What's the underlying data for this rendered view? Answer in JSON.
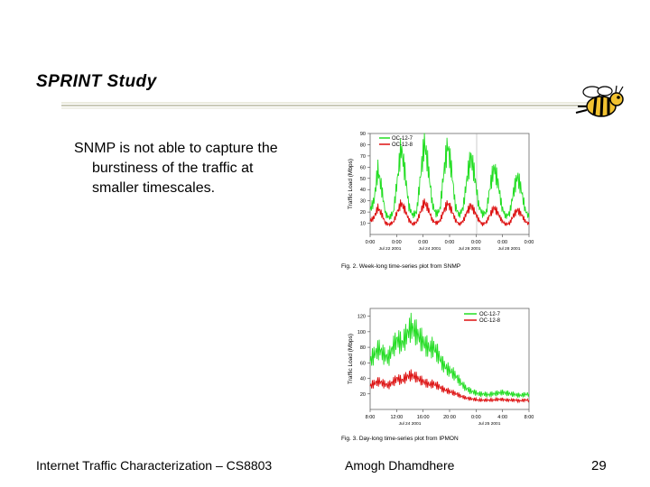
{
  "slide": {
    "title": "SPRINT Study",
    "bullet_lines": [
      "SNMP is not able to capture the",
      "burstiness of the traffic at",
      "smaller timescales."
    ],
    "footer_left": "Internet Traffic Characterization – CS8803",
    "footer_center": "Amogh Dhamdhere",
    "page_number": "29",
    "mascot_icon": "bee-mascot-icon"
  },
  "colors": {
    "green": "#22dd22",
    "red": "#dd1111",
    "rule": "#c8c8b0"
  },
  "chart_data": [
    {
      "type": "line",
      "caption": "Fig. 2.   Week-long time-series plot from SNMP",
      "ylabel": "Traffic Load (Mbps)",
      "ylim": [
        0,
        90
      ],
      "yticks": [
        "10",
        "20",
        "30",
        "40",
        "50",
        "60",
        "70",
        "80",
        "90"
      ],
      "xticks_time": [
        "0:00",
        "0:00",
        "0:00",
        "0:00",
        "0:00",
        "0:00",
        "0:00"
      ],
      "xticks_date": [
        "Jul 22 2001",
        "Jul 24 2001",
        "Jul 26 2001",
        "Jul 28 2001"
      ],
      "legend": [
        "OC-12-7",
        "OC-12-8"
      ],
      "series": [
        {
          "name": "OC-12-7",
          "color": "green",
          "values": [
            22,
            30,
            58,
            40,
            18,
            15,
            20,
            48,
            78,
            55,
            25,
            17,
            20,
            52,
            82,
            60,
            28,
            18,
            22,
            55,
            80,
            58,
            25,
            17,
            24,
            50,
            70,
            52,
            26,
            18,
            20,
            44,
            60,
            46,
            24,
            16,
            19,
            38,
            52,
            40,
            22,
            15
          ]
        },
        {
          "name": "OC-12-8",
          "color": "red",
          "values": [
            12,
            15,
            24,
            18,
            10,
            9,
            11,
            20,
            28,
            22,
            13,
            9,
            11,
            20,
            29,
            23,
            13,
            10,
            12,
            21,
            28,
            22,
            13,
            9,
            12,
            20,
            26,
            20,
            13,
            9,
            11,
            18,
            24,
            19,
            12,
            9,
            10,
            17,
            22,
            18,
            12,
            9
          ]
        }
      ]
    },
    {
      "type": "line",
      "caption": "Fig. 3.   Day-long time-series plot from IPMON",
      "ylabel": "Traffic Load (Mbps)",
      "ylim": [
        0,
        130
      ],
      "yticks": [
        "20",
        "40",
        "60",
        "80",
        "100",
        "120"
      ],
      "xticks_time": [
        "8:00",
        "12:00",
        "16:00",
        "20:00",
        "0:00",
        "4:00",
        "8:00"
      ],
      "xticks_date": [
        "Jul 24 2001",
        "Jul 25 2001"
      ],
      "legend": [
        "OC-12-7",
        "OC-12-8"
      ],
      "series": [
        {
          "name": "OC-12-7",
          "color": "green",
          "values": [
            62,
            72,
            78,
            70,
            66,
            80,
            90,
            84,
            96,
            106,
            100,
            92,
            84,
            78,
            80,
            70,
            58,
            52,
            48,
            42,
            34,
            28,
            24,
            22,
            20,
            20,
            19,
            20,
            21,
            22,
            21,
            20,
            19,
            18,
            19,
            20
          ]
        },
        {
          "name": "OC-12-8",
          "color": "red",
          "values": [
            30,
            34,
            36,
            33,
            31,
            35,
            40,
            37,
            42,
            44,
            42,
            38,
            35,
            32,
            33,
            30,
            26,
            24,
            22,
            20,
            17,
            15,
            14,
            13,
            12,
            12,
            12,
            12,
            13,
            13,
            12,
            12,
            12,
            11,
            12,
            12
          ]
        }
      ]
    }
  ]
}
